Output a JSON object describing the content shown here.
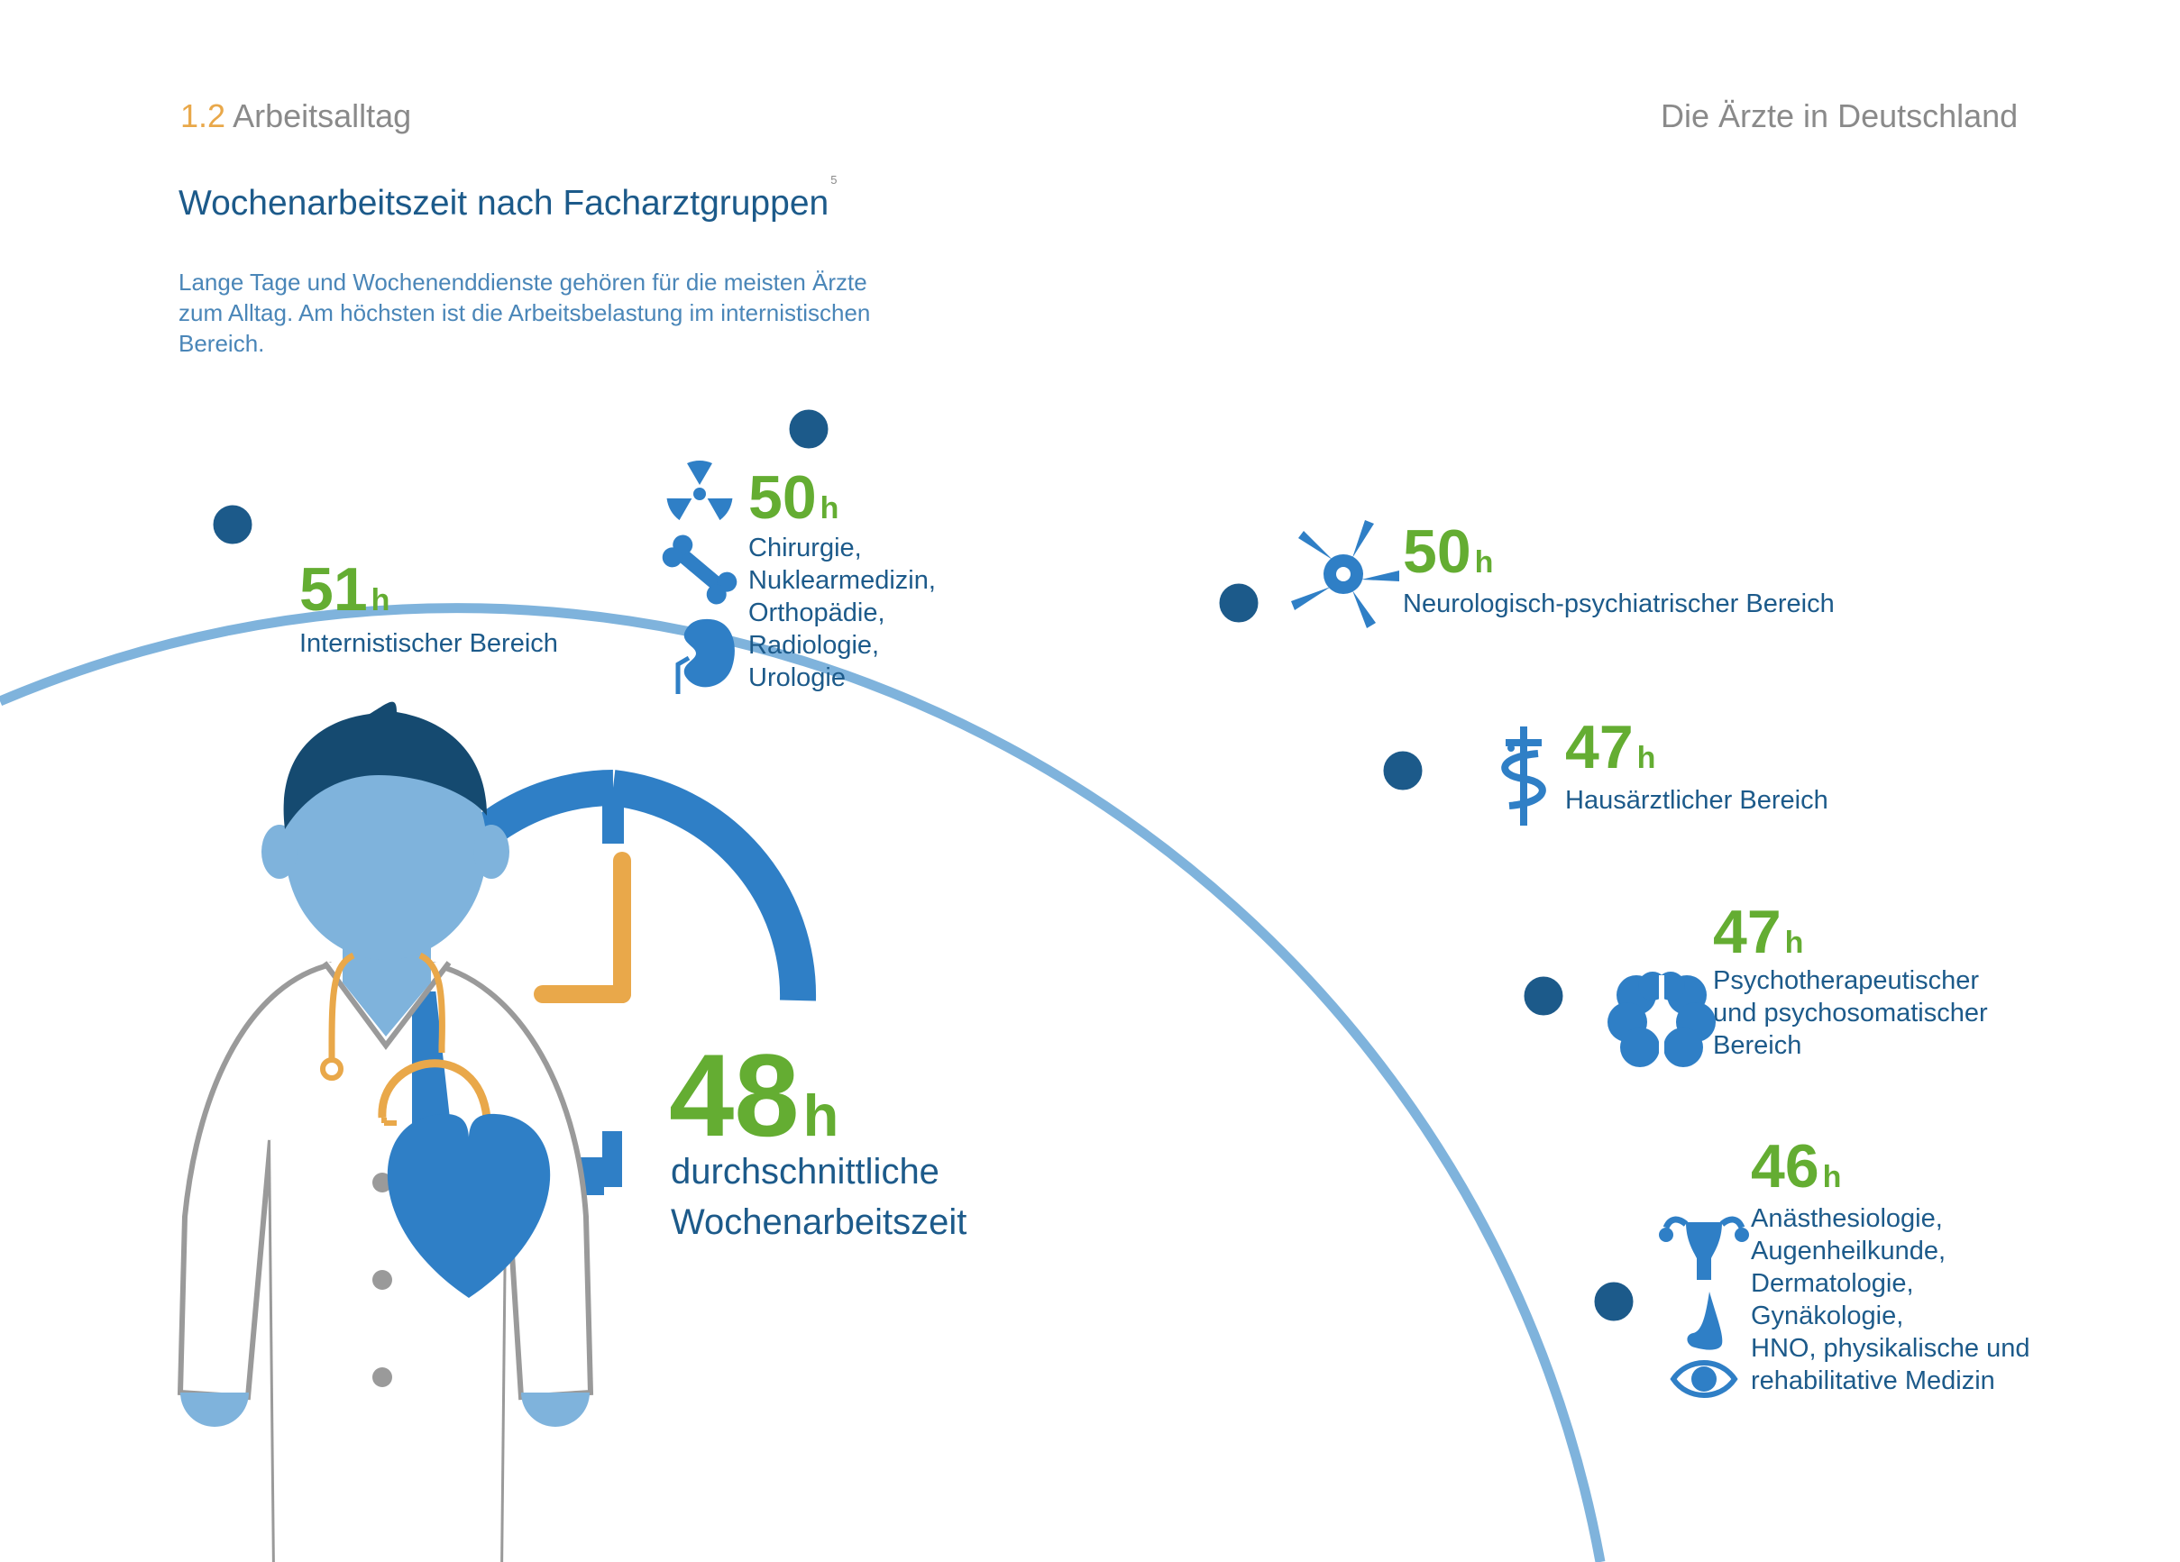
{
  "header": {
    "section_number": "1.2",
    "section_title": "Arbeitsalltag",
    "document_title": "Die Ärzte in Deutschland"
  },
  "headline": {
    "title": "Wochenarbeitszeit nach Facharztgruppen",
    "footnote": "5"
  },
  "intro": {
    "line1": "Lange Tage und Wochenenddienste gehören für die meisten Ärzte",
    "line2": "zum Alltag. Am höchsten ist die Arbeitsbelastung im internistischen",
    "line3": "Bereich."
  },
  "average": {
    "value": "48",
    "unit": "h",
    "label_line1": "durchschnittliche",
    "label_line2": "Wochenarbeitszeit"
  },
  "colors": {
    "value_green": "#64ad32",
    "label_blue": "#1c5a8a",
    "arc_blue": "#7fb3dc",
    "dot_navy": "#1c5a8a",
    "icon_blue": "#2f7fc6",
    "accent_orange": "#e9a84a"
  },
  "chart_data": {
    "type": "bar",
    "categories": [
      "Internistischer Bereich",
      "Chirurgie, Nuklearmedizin, Orthopädie, Radiologie, Urologie",
      "Neurologisch-psychiatrischer Bereich",
      "Hausärztlicher Bereich",
      "Psychotherapeutischer und psychosomatischer Bereich",
      "Anästhesiologie, Augenheilkunde, Dermatologie, Gynäkologie, HNO, physikalische und rehabilitative Medizin"
    ],
    "values": [
      51,
      50,
      50,
      47,
      47,
      46
    ],
    "unit": "h",
    "items": [
      {
        "value": "51",
        "unit": "h",
        "lines": [
          "Internistischer Bereich"
        ],
        "icons": [
          "heart-icon"
        ]
      },
      {
        "value": "50",
        "unit": "h",
        "lines": [
          "Chirurgie,",
          "Nuklearmedizin,",
          "Orthopädie,",
          "Radiologie,",
          "Urologie"
        ],
        "icons": [
          "radiation-icon",
          "bone-icon",
          "kidney-icon"
        ]
      },
      {
        "value": "50",
        "unit": "h",
        "lines": [
          "Neurologisch-psychiatrischer Bereich"
        ],
        "icons": [
          "neuron-icon"
        ]
      },
      {
        "value": "47",
        "unit": "h",
        "lines": [
          "Hausärztlicher Bereich"
        ],
        "icons": [
          "caduceus-icon"
        ]
      },
      {
        "value": "47",
        "unit": "h",
        "lines": [
          "Psychotherapeutischer",
          "und psychosomatischer",
          "Bereich"
        ],
        "icons": [
          "brain-icon"
        ]
      },
      {
        "value": "46",
        "unit": "h",
        "lines": [
          "Anästhesiologie,",
          "Augenheilkunde,",
          "Dermatologie,",
          "Gynäkologie,",
          "HNO, physikalische und",
          "rehabilitative Medizin"
        ],
        "icons": [
          "uterus-icon",
          "nose-icon",
          "eye-icon"
        ]
      }
    ]
  }
}
